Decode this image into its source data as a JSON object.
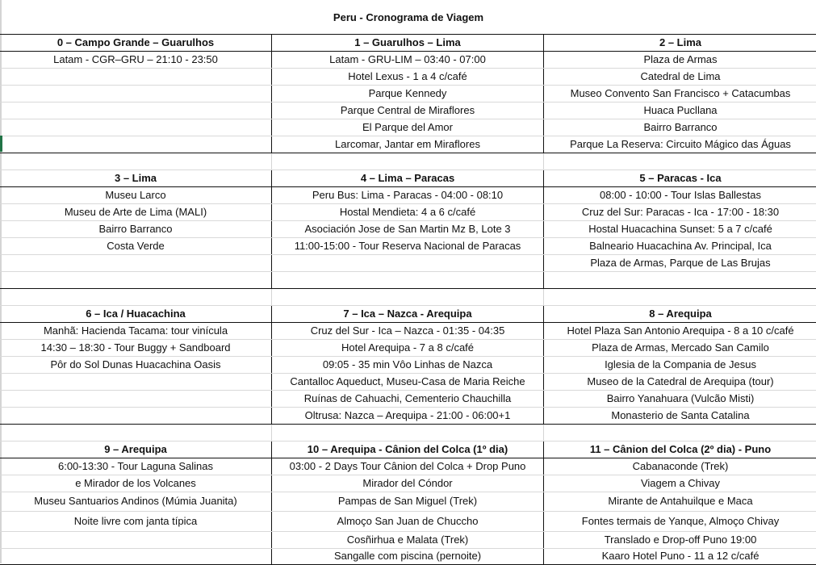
{
  "title": "Peru - Cronograma de Viagem",
  "sections": [
    {
      "days": [
        {
          "header": "0 – Campo Grande – Guarulhos",
          "items": [
            "Latam - CGR–GRU – 21:10 - 23:50",
            "",
            "",
            "",
            "",
            ""
          ]
        },
        {
          "header": "1 – Guarulhos – Lima",
          "items": [
            "Latam - GRU-LIM – 03:40 - 07:00",
            "Hotel Lexus - 1 a 4 c/café",
            "Parque Kennedy",
            "Parque Central de Miraflores",
            "El Parque del Amor",
            "Larcomar, Jantar em Miraflores"
          ]
        },
        {
          "header": "2 – Lima",
          "items": [
            "Plaza de Armas",
            "Catedral de Lima",
            "Museo Convento San Francisco + Catacumbas",
            "Huaca Pucllana",
            "Bairro Barranco",
            "Parque La Reserva: Circuito Mágico das Águas"
          ]
        }
      ]
    },
    {
      "days": [
        {
          "header": "3 – Lima",
          "items": [
            "Museu Larco",
            "Museu de Arte de Lima (MALI)",
            "Bairro Barranco",
            "Costa Verde",
            "",
            ""
          ]
        },
        {
          "header": "4 – Lima – Paracas",
          "items": [
            "Peru Bus: Lima - Paracas - 04:00 - 08:10",
            "Hostal Mendieta:  4 a 6 c/café",
            "Asociación Jose de San Martin Mz B, Lote 3",
            "11:00-15:00 - Tour Reserva Nacional de Paracas",
            "",
            ""
          ]
        },
        {
          "header": "5 – Paracas - Ica",
          "items": [
            "08:00 - 10:00 - Tour Islas Ballestas",
            "Cruz del Sur: Paracas - Ica - 17:00 - 18:30",
            "Hostal Huacachina Sunset: 5 a 7 c/café",
            "Balneario Huacachina Av. Principal, Ica",
            "Plaza de Armas, Parque de Las Brujas",
            ""
          ]
        }
      ]
    },
    {
      "days": [
        {
          "header": "6 – Ica / Huacachina",
          "items": [
            "Manhã: Hacienda Tacama: tour vinícula",
            "14:30 – 18:30 - Tour Buggy + Sandboard",
            "Pôr do Sol Dunas Huacachina Oasis",
            "",
            "",
            ""
          ]
        },
        {
          "header": "7 – Ica – Nazca - Arequipa",
          "items": [
            "Cruz del Sur - Ica – Nazca - 01:35 - 04:35",
            "Hotel Arequipa - 7 a 8 c/café",
            "09:05 - 35 min Vôo Linhas de Nazca",
            "Cantalloc Aqueduct, Museu-Casa de Maria Reiche",
            "Ruínas de Cahuachi, Cementerio Chauchilla",
            "Oltrusa: Nazca – Arequipa - 21:00 - 06:00+1"
          ]
        },
        {
          "header": "8 – Arequipa",
          "items": [
            "Hotel Plaza San Antonio Arequipa - 8 a 10 c/café",
            "Plaza de Armas, Mercado San Camilo",
            "Iglesia de la Compania de Jesus",
            "Museo de la Catedral de Arequipa (tour)",
            "Bairro Yanahuara (Vulcão Misti)",
            "Monasterio de Santa Catalina"
          ]
        }
      ]
    },
    {
      "days": [
        {
          "header": "9 – Arequipa",
          "items": [
            "6:00-13:30 - Tour Laguna Salinas",
            "e Mirador de los Volcanes",
            "Museu Santuarios Andinos (Múmia Juanita)",
            "Noite livre com janta típica",
            "",
            ""
          ]
        },
        {
          "header": "10 – Arequipa - Cânion del Colca (1º dia)",
          "items": [
            "03:00 - 2 Days Tour Cânion del Colca + Drop Puno",
            "Mirador del Cóndor",
            "Pampas de San Miguel (Trek)",
            "Almoço San Juan de Chuccho",
            "Cosñirhua e Malata (Trek)",
            "Sangalle com piscina (pernoite)"
          ]
        },
        {
          "header": "11 – Cânion del Colca (2º dia) - Puno",
          "items": [
            "Cabanaconde (Trek)",
            "Viagem a Chivay",
            "Mirante de Antahuilque e Maca",
            "Fontes termais de Yanque, Almoço Chivay",
            "Translado e Drop-off Puno 19:00",
            "Kaaro Hotel Puno - 11 a 12 c/café"
          ]
        }
      ]
    }
  ]
}
